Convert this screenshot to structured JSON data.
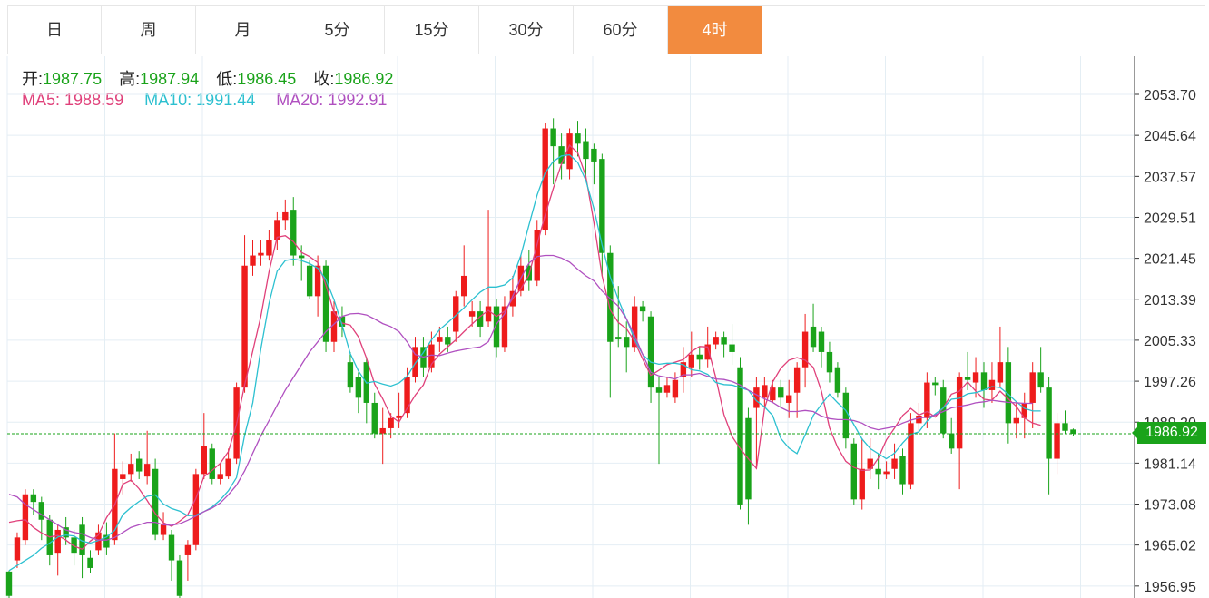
{
  "tabs": [
    {
      "label": "日",
      "active": false
    },
    {
      "label": "周",
      "active": false
    },
    {
      "label": "月",
      "active": false
    },
    {
      "label": "5分",
      "active": false
    },
    {
      "label": "15分",
      "active": false
    },
    {
      "label": "30分",
      "active": false
    },
    {
      "label": "60分",
      "active": false
    },
    {
      "label": "4时",
      "active": true
    }
  ],
  "info": {
    "open_label": "开:",
    "open": "1987.75",
    "high_label": "高:",
    "high": "1987.94",
    "low_label": "低:",
    "low": "1986.45",
    "close_label": "收:",
    "close": "1986.92",
    "ma5_label": "MA5:",
    "ma5": "1988.59",
    "ma10_label": "MA10:",
    "ma10": "1991.44",
    "ma20_label": "MA20:",
    "ma20": "1992.91"
  },
  "current_price": "1986.92",
  "colors": {
    "up": "#ee1c1c",
    "down": "#1aa31a",
    "ma5": "#e0407a",
    "ma10": "#2cc0d0",
    "ma20": "#b050c0",
    "accent": "#f28b3f"
  },
  "chart_data": {
    "type": "candlestick",
    "y_ticks": [
      "2053.70",
      "2045.64",
      "2037.57",
      "2029.51",
      "2021.45",
      "2013.39",
      "2005.33",
      "1997.26",
      "1989.20",
      "1981.14",
      "1973.08",
      "1965.02",
      "1956.95"
    ],
    "ylim": [
      1954.6,
      2061.2
    ],
    "current_price": 1986.92,
    "grid": true,
    "candles": [
      [
        1959.8,
        1955.0,
        1960.0,
        1954.5
      ],
      [
        1962.0,
        1966.5,
        1967.5,
        1960.5
      ],
      [
        1966.0,
        1975.0,
        1976.0,
        1965.0
      ],
      [
        1975.0,
        1973.5,
        1976.0,
        1971.0
      ],
      [
        1973.5,
        1970.0,
        1974.5,
        1966.0
      ],
      [
        1970.0,
        1963.0,
        1971.0,
        1961.0
      ],
      [
        1963.5,
        1968.0,
        1969.0,
        1959.0
      ],
      [
        1968.5,
        1966.5,
        1970.5,
        1965.0
      ],
      [
        1966.5,
        1963.5,
        1968.0,
        1961.0
      ],
      [
        1969.0,
        1963.0,
        1970.5,
        1958.5
      ],
      [
        1962.5,
        1960.5,
        1964.0,
        1959.5
      ],
      [
        1964.0,
        1967.5,
        1969.0,
        1963.0
      ],
      [
        1967.0,
        1964.5,
        1969.5,
        1963.0
      ],
      [
        1966.0,
        1980.0,
        1987.0,
        1965.0
      ],
      [
        1978.0,
        1979.0,
        1981.5,
        1975.0
      ],
      [
        1979.0,
        1981.0,
        1983.0,
        1977.5
      ],
      [
        1982.0,
        1979.5,
        1983.5,
        1978.0
      ],
      [
        1978.5,
        1981.0,
        1987.5,
        1977.0
      ],
      [
        1980.0,
        1967.0,
        1982.0,
        1966.0
      ],
      [
        1967.0,
        1969.0,
        1971.5,
        1966.0
      ],
      [
        1967.0,
        1962.0,
        1968.0,
        1958.0
      ],
      [
        1962.0,
        1955.0,
        1963.0,
        1951.0
      ],
      [
        1963.0,
        1965.0,
        1966.0,
        1958.0
      ],
      [
        1965.0,
        1979.0,
        1980.0,
        1964.0
      ],
      [
        1979.0,
        1984.5,
        1991.0,
        1978.0
      ],
      [
        1984.0,
        1978.0,
        1985.0,
        1977.0
      ],
      [
        1978.0,
        1979.0,
        1981.0,
        1977.0
      ],
      [
        1978.5,
        1982.0,
        1984.0,
        1978.0
      ],
      [
        1982.0,
        1996.0,
        1997.0,
        1981.0
      ],
      [
        1996.0,
        2020.0,
        2026.0,
        1995.0
      ],
      [
        2020.0,
        2022.0,
        2025.0,
        2018.0
      ],
      [
        2022.0,
        2022.5,
        2025.0,
        2020.0
      ],
      [
        2022.0,
        2025.0,
        2027.0,
        2021.0
      ],
      [
        2025.0,
        2029.0,
        2030.5,
        2023.0
      ],
      [
        2029.0,
        2030.5,
        2033.0,
        2027.0
      ],
      [
        2031.0,
        2022.0,
        2033.5,
        2020.0
      ],
      [
        2022.0,
        2021.5,
        2024.0,
        2017.0
      ],
      [
        2020.0,
        2014.0,
        2021.0,
        2013.5
      ],
      [
        2014.0,
        2020.0,
        2022.0,
        2010.0
      ],
      [
        2020.0,
        2005.0,
        2021.0,
        2003.0
      ],
      [
        2005.0,
        2011.0,
        2013.0,
        2003.0
      ],
      [
        2010.0,
        2008.0,
        2012.0,
        2006.0
      ],
      [
        2001.0,
        1996.0,
        2003.0,
        1995.0
      ],
      [
        1998.0,
        1994.0,
        1999.0,
        1991.0
      ],
      [
        2001.0,
        1993.0,
        2002.0,
        1989.0
      ],
      [
        1993.0,
        1987.0,
        1995.0,
        1986.0
      ],
      [
        1987.0,
        1988.0,
        1992.0,
        1981.0
      ],
      [
        1988.0,
        1990.0,
        1991.0,
        1986.0
      ],
      [
        1990.0,
        1990.5,
        1995.0,
        1988.0
      ],
      [
        1991.0,
        1998.0,
        2000.0,
        1990.0
      ],
      [
        1998.0,
        2004.0,
        2006.0,
        1997.0
      ],
      [
        2004.0,
        2000.0,
        2006.0,
        1998.0
      ],
      [
        2000.0,
        2004.5,
        2007.0,
        1999.0
      ],
      [
        2005.0,
        2006.0,
        2008.0,
        2003.0
      ],
      [
        2006.0,
        2004.5,
        2008.0,
        2003.0
      ],
      [
        2007.0,
        2014.0,
        2015.0,
        2005.0
      ],
      [
        2014.0,
        2018.0,
        2024.0,
        2012.0
      ],
      [
        2010.0,
        2011.0,
        2013.0,
        2008.0
      ],
      [
        2011.0,
        2008.0,
        2013.0,
        2006.0
      ],
      [
        2009.0,
        2012.0,
        2031.0,
        2008.0
      ],
      [
        2012.0,
        2004.0,
        2013.5,
        2002.0
      ],
      [
        2004.0,
        2012.0,
        2014.0,
        2003.0
      ],
      [
        2012.0,
        2015.0,
        2018.0,
        2010.0
      ],
      [
        2015.0,
        2020.0,
        2022.0,
        2014.0
      ],
      [
        2020.0,
        2017.0,
        2023.0,
        2015.0
      ],
      [
        2017.0,
        2027.0,
        2029.0,
        2016.0
      ],
      [
        2027.0,
        2047.0,
        2048.0,
        2026.0
      ],
      [
        2047.0,
        2043.5,
        2049.0,
        2036.0
      ],
      [
        2043.5,
        2040.0,
        2046.0,
        2037.0
      ],
      [
        2039.0,
        2046.0,
        2047.0,
        2037.0
      ],
      [
        2046.0,
        2044.0,
        2048.5,
        2041.5
      ],
      [
        2044.5,
        2041.0,
        2047.0,
        2037.0
      ],
      [
        2043.0,
        2040.5,
        2044.0,
        2036.0
      ],
      [
        2041.0,
        2022.5,
        2042.0,
        2018.0
      ],
      [
        2022.5,
        2005.0,
        2024.0,
        1994.0
      ],
      [
        2006.0,
        2005.5,
        2016.0,
        2004.0
      ],
      [
        2006.0,
        2004.0,
        2009.0,
        1999.0
      ],
      [
        2004.0,
        2012.0,
        2014.0,
        2003.0
      ],
      [
        2012.0,
        2011.0,
        2013.0,
        2009.0
      ],
      [
        2010.0,
        1996.0,
        2011.0,
        1993.0
      ],
      [
        1996.0,
        1995.0,
        1998.0,
        1981.0
      ],
      [
        1995.0,
        1996.5,
        1998.0,
        1994.0
      ],
      [
        1994.0,
        1997.5,
        1999.0,
        1993.0
      ],
      [
        1998.0,
        2001.0,
        2004.0,
        1995.0
      ],
      [
        2000.0,
        2002.5,
        2007.0,
        1998.0
      ],
      [
        2002.5,
        2001.5,
        2004.0,
        1999.5
      ],
      [
        2001.5,
        2004.5,
        2008.0,
        2000.0
      ],
      [
        2004.5,
        2006.0,
        2007.0,
        2003.5
      ],
      [
        2006.0,
        2004.5,
        2007.0,
        2002.0
      ],
      [
        2004.5,
        2003.0,
        2008.5,
        2000.5
      ],
      [
        2000.0,
        1973.0,
        2002.0,
        1972.0
      ],
      [
        1990.0,
        1974.0,
        1992.0,
        1969.0
      ],
      [
        1992.0,
        1996.0,
        1998.0,
        1980.0
      ],
      [
        1994.0,
        1996.5,
        1998.0,
        1992.0
      ],
      [
        1993.5,
        1996.0,
        1997.5,
        1993.0
      ],
      [
        1996.0,
        1994.0,
        1997.5,
        1992.0
      ],
      [
        1993.0,
        1994.5,
        1997.5,
        1990.0
      ],
      [
        1995.0,
        2000.0,
        2001.0,
        1990.0
      ],
      [
        2000.0,
        2007.0,
        2010.5,
        1996.0
      ],
      [
        2008.0,
        2004.0,
        2012.5,
        2003.0
      ],
      [
        2007.0,
        2003.0,
        2008.0,
        2000.0
      ],
      [
        2003.0,
        1999.0,
        2005.0,
        1997.0
      ],
      [
        2000.0,
        1995.0,
        2001.0,
        1994.0
      ],
      [
        1995.0,
        1986.0,
        1996.0,
        1984.0
      ],
      [
        1985.0,
        1974.0,
        1986.0,
        1973.0
      ],
      [
        1974.0,
        1980.0,
        1986.0,
        1972.0
      ],
      [
        1980.0,
        1982.0,
        1986.0,
        1978.0
      ],
      [
        1980.0,
        1979.0,
        1983.0,
        1976.0
      ],
      [
        1979.0,
        1979.5,
        1981.5,
        1978.0
      ],
      [
        1980.0,
        1982.0,
        1985.0,
        1978.0
      ],
      [
        1982.5,
        1977.0,
        1984.0,
        1975.0
      ],
      [
        1977.0,
        1989.0,
        1991.0,
        1976.0
      ],
      [
        1989.0,
        1990.5,
        1993.0,
        1987.0
      ],
      [
        1990.0,
        1997.0,
        1999.0,
        1988.0
      ],
      [
        1997.0,
        1996.5,
        1998.0,
        1994.5
      ],
      [
        1996.0,
        1987.0,
        1997.5,
        1986.0
      ],
      [
        1987.0,
        1984.0,
        1990.0,
        1983.0
      ],
      [
        1984.0,
        1998.0,
        1999.0,
        1976.0
      ],
      [
        1998.0,
        1997.5,
        2003.0,
        1995.5
      ],
      [
        1997.0,
        1999.0,
        2002.0,
        1994.0
      ],
      [
        1999.0,
        1995.5,
        2001.0,
        1992.0
      ],
      [
        1995.5,
        1997.5,
        2001.0,
        1993.0
      ],
      [
        1997.0,
        2001.0,
        2008.0,
        1996.0
      ],
      [
        2001.0,
        1989.0,
        2004.0,
        1985.0
      ],
      [
        1989.0,
        1990.0,
        1993.0,
        1986.0
      ],
      [
        1990.0,
        1993.0,
        1995.0,
        1986.0
      ],
      [
        1993.0,
        1999.0,
        2001.0,
        1988.0
      ],
      [
        1999.0,
        1996.0,
        2004.0,
        1995.0
      ],
      [
        1996.0,
        1982.0,
        1998.0,
        1975.0
      ],
      [
        1982.0,
        1989.0,
        1991.0,
        1979.0
      ],
      [
        1989.0,
        1987.5,
        1991.5,
        1987.0
      ],
      [
        1987.75,
        1986.92,
        1987.94,
        1986.45
      ]
    ],
    "series": [
      {
        "name": "MA5",
        "values": [
          1969.5,
          1969.8,
          1970.0,
          1968.5,
          1967.4,
          1966.6,
          1966.9,
          1966.0,
          1964.8,
          1964.2,
          1965.8,
          1967.0,
          1970.4,
          1972.9,
          1977.0,
          1977.8,
          1976.1,
          1973.8,
          1971.2,
          1969.4,
          1968.7,
          1969.7,
          1971.0,
          1974.2,
          1978.5,
          1979.7,
          1981.1,
          1983.4,
          1988.8,
          1996.5,
          2003.2,
          2010.0,
          2018.8,
          2025.6,
          2025.9,
          2024.7,
          2022.6,
          2021.8,
          2020.6,
          2016.2,
          2010.8,
          2008.7,
          2008.3,
          2006.0,
          2001.8,
          1996.7,
          1993.8,
          1990.4,
          1989.2,
          1991.9,
          1994.5,
          1996.5,
          2000.6,
          2002.6,
          2004.0,
          2005.4,
          2007.0,
          2008.5,
          2010.0,
          2011.2,
          2010.0,
          2011.0,
          2013.5,
          2015.4,
          2018.2,
          2024.2,
          2030.0,
          2035.2,
          2040.0,
          2043.7,
          2042.2,
          2037.6,
          2028.4,
          2018.0,
          2011.3,
          2008.8,
          2007.6,
          2005.1,
          2001.6,
          1998.4,
          1999.4,
          2000.5,
          2001.0,
          2001.5,
          2003.1,
          2004.1,
          2004.0,
          1998.0,
          1990.7,
          1986.4,
          1984.0,
          1982.0,
          1980.1,
          1991.9,
          1997.1,
          1999.8,
          2001.4,
          2001.9,
          2001.4,
          2000.0,
          1995.3,
          1988.1,
          1984.2,
          1981.5,
          1980.3,
          1979.7,
          1979.8,
          1982.1,
          1985.7,
          1988.0,
          1990.5,
          1991.9,
          1990.6,
          1991.3,
          1990.2,
          1992.0,
          1994.7,
          1995.3,
          1997.1,
          1995.3,
          1993.7,
          1993.5,
          1995.3,
          1993.8,
          1992.3,
          1990.0,
          1989.0,
          1988.6
        ]
      },
      {
        "name": "MA10",
        "values": [
          1960.0,
          1961.0,
          1962.0,
          1963.0,
          1964.4,
          1965.4,
          1966.6,
          1967.0,
          1966.8,
          1965.8,
          1965.4,
          1965.9,
          1966.6,
          1967.9,
          1971.0,
          1972.4,
          1973.6,
          1974.6,
          1974.9,
          1973.1,
          1972.2,
          1971.7,
          1970.8,
          1970.9,
          1971.6,
          1972.5,
          1973.9,
          1975.7,
          1978.3,
          1986.6,
          1993.0,
          2003.6,
          2012.6,
          2018.9,
          2021.0,
          2021.3,
          2021.0,
          2020.4,
          2019.5,
          2017.3,
          2013.3,
          2008.3,
          2002.7,
          1999.3,
          1996.9,
          1997.2,
          1996.7,
          1996.3,
          1996.9,
          1998.2,
          2000.8,
          2002.9,
          2005.4,
          2007.4,
          2008.8,
          2010.2,
          2011.7,
          2013.3,
          2014.8,
          2015.8,
          2015.8,
          2016.2,
          2017.6,
          2022.0,
          2028.0,
          2033.9,
          2038.3,
          2040.5,
          2041.6,
          2041.8,
          2040.3,
          2036.8,
          2031.2,
          2024.1,
          2017.8,
          2013.3,
          2009.5,
          2005.5,
          2002.5,
          2001.0,
          2000.6,
          2000.8,
          2000.8,
          2000.5,
          1999.5,
          1999.3,
          1998.6,
          1997.0,
          1996.6,
          1996.5,
          1996.0,
          1995.5,
          1993.4,
          1992.2,
          1990.5,
          1986.0,
          1984.1,
          1983.0,
          1986.7,
          1990.5,
          1992.7,
          1994.7,
          1993.0,
          1991.5,
          1988.7,
          1985.9,
          1984.0,
          1983.0,
          1982.0,
          1983.1,
          1985.1,
          1986.8,
          1987.3,
          1989.4,
          1990.8,
          1992.0,
          1993.7,
          1993.9,
          1994.8,
          1995.0,
          1995.5,
          1996.2,
          1996.0,
          1994.7,
          1993.2,
          1991.9,
          1991.4,
          1991.4
        ]
      },
      {
        "name": "MA20",
        "values": [
          1975.0,
          1974.5,
          1973.0,
          1972.0,
          1971.0,
          1970.0,
          1969.0,
          1968.0,
          1967.5,
          1967.2,
          1966.5,
          1966.0,
          1966.0,
          1966.5,
          1967.5,
          1968.5,
          1969.0,
          1969.5,
          1969.5,
          1969.0,
          1968.9,
          1969.2,
          1969.9,
          1970.7,
          1971.6,
          1972.3,
          1973.3,
          1974.9,
          1976.8,
          1979.6,
          1983.1,
          1986.5,
          1989.5,
          1992.5,
          1995.5,
          1998.0,
          2000.5,
          2003.0,
          2005.0,
          2007.0,
          2008.5,
          2010.0,
          2010.5,
          2010.6,
          2010.3,
          2009.5,
          2008.6,
          2008.0,
          2007.0,
          2005.0,
          2002.5,
          2002.0,
          2002.4,
          2002.3,
          2002.8,
          2003.2,
          2003.5,
          2003.8,
          2004.0,
          2005.0,
          2008.5,
          2010.5,
          2014.0,
          2017.5,
          2020.5,
          2021.8,
          2022.0,
          2022.0,
          2021.5,
          2020.7,
          2019.3,
          2018.0,
          2017.0,
          2015.0,
          2013.5,
          2012.0,
          2009.5,
          2006.3,
          2002.5,
          1999.0,
          1998.3,
          1998.0,
          1997.7,
          1998.5,
          1998.5,
          1998.8,
          1998.2,
          1997.7,
          1997.6,
          1997.2,
          1996.5,
          1995.5,
          1994.6,
          1993.8,
          1993.1,
          1992.1,
          1991.3,
          1991.3,
          1991.5,
          1991.3,
          1990.4,
          1989.9,
          1989.7,
          1989.7,
          1989.5,
          1989.0,
          1988.1,
          1987.7,
          1988.0,
          1988.3,
          1989.0,
          1989.6,
          1990.0,
          1990.2,
          1990.6,
          1991.3,
          1992.0,
          1992.3,
          1992.6,
          1993.0,
          1993.2,
          1993.5,
          1993.3,
          1993.1,
          1993.0,
          1992.9,
          1992.9
        ]
      }
    ]
  }
}
